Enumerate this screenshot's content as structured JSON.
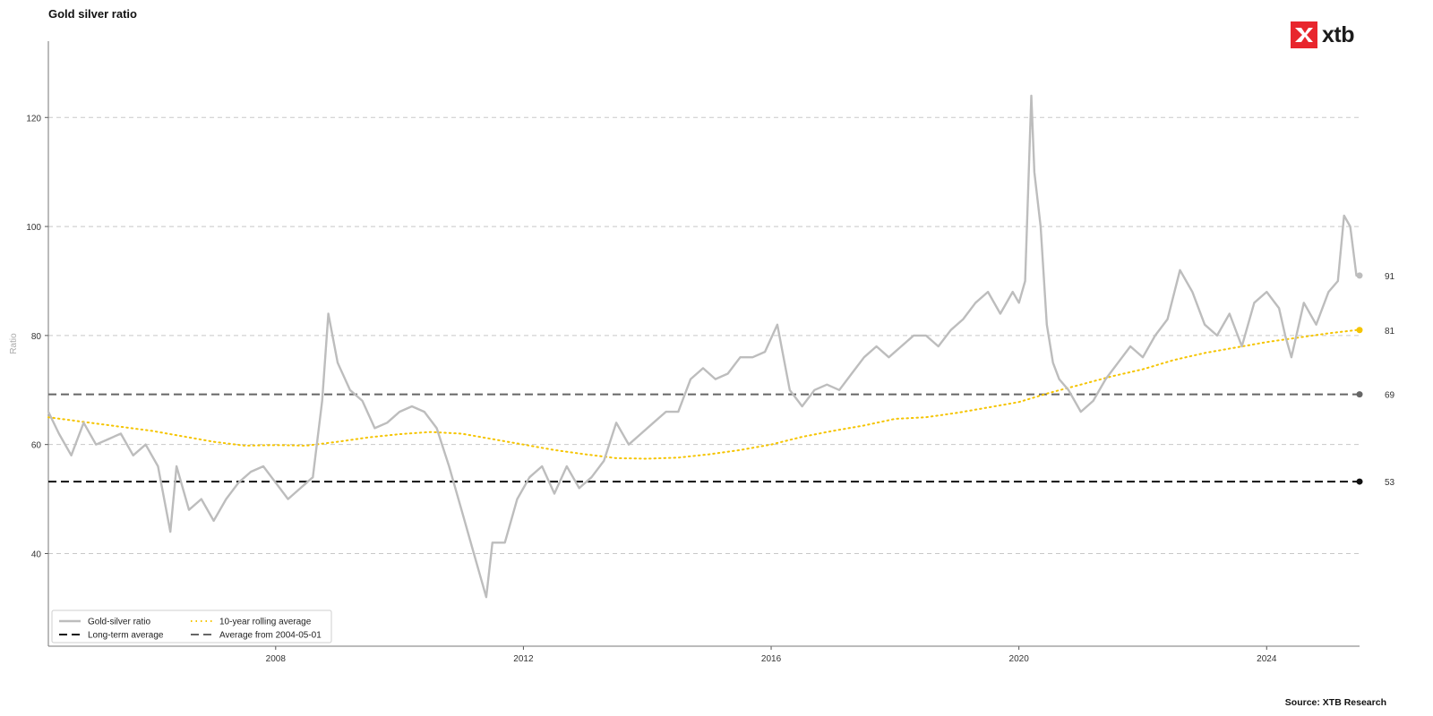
{
  "title": "Gold silver ratio",
  "source": "Source: XTB Research",
  "logo": {
    "text": "xtb",
    "color": "#e8262d"
  },
  "chart_data": {
    "type": "line",
    "title": "Gold silver ratio",
    "xlabel": "",
    "ylabel": "Ratio",
    "xlim": [
      2004.33,
      2025.5
    ],
    "ylim": [
      23,
      134
    ],
    "x_ticks": [
      2008,
      2012,
      2016,
      2020,
      2024
    ],
    "x_tick_labels": [
      "2008",
      "2012",
      "2016",
      "2020",
      "2024"
    ],
    "y_ticks": [
      40,
      60,
      80,
      100,
      120
    ],
    "y_tick_labels": [
      "40",
      "60",
      "80",
      "100",
      "120"
    ],
    "grid": "horizontal dashed",
    "legend_position": "bottom-left",
    "series": [
      {
        "name": "Gold-silver ratio",
        "style": "solid",
        "color": "#bdbdbd",
        "end_label": "91",
        "x": [
          2004.33,
          2004.5,
          2004.7,
          2004.9,
          2005.1,
          2005.3,
          2005.5,
          2005.7,
          2005.9,
          2006.1,
          2006.3,
          2006.4,
          2006.6,
          2006.8,
          2007.0,
          2007.2,
          2007.4,
          2007.6,
          2007.8,
          2008.0,
          2008.2,
          2008.4,
          2008.6,
          2008.75,
          2008.85,
          2009.0,
          2009.2,
          2009.4,
          2009.6,
          2009.8,
          2010.0,
          2010.2,
          2010.4,
          2010.6,
          2010.8,
          2011.0,
          2011.2,
          2011.3,
          2011.4,
          2011.5,
          2011.7,
          2011.9,
          2012.1,
          2012.3,
          2012.5,
          2012.7,
          2012.9,
          2013.1,
          2013.3,
          2013.5,
          2013.7,
          2013.9,
          2014.1,
          2014.3,
          2014.5,
          2014.7,
          2014.9,
          2015.1,
          2015.3,
          2015.5,
          2015.7,
          2015.9,
          2016.1,
          2016.3,
          2016.5,
          2016.7,
          2016.9,
          2017.1,
          2017.3,
          2017.5,
          2017.7,
          2017.9,
          2018.1,
          2018.3,
          2018.5,
          2018.7,
          2018.9,
          2019.1,
          2019.3,
          2019.5,
          2019.7,
          2019.9,
          2020.0,
          2020.1,
          2020.2,
          2020.25,
          2020.35,
          2020.45,
          2020.55,
          2020.65,
          2020.8,
          2021.0,
          2021.2,
          2021.4,
          2021.6,
          2021.8,
          2022.0,
          2022.2,
          2022.4,
          2022.6,
          2022.8,
          2023.0,
          2023.2,
          2023.4,
          2023.6,
          2023.8,
          2024.0,
          2024.2,
          2024.3,
          2024.4,
          2024.6,
          2024.8,
          2025.0,
          2025.15,
          2025.25,
          2025.35,
          2025.45
        ],
        "y": [
          66,
          62,
          58,
          64,
          60,
          61,
          62,
          58,
          60,
          56,
          44,
          56,
          48,
          50,
          46,
          50,
          53,
          55,
          56,
          53,
          50,
          52,
          54,
          68,
          84,
          75,
          70,
          68,
          63,
          64,
          66,
          67,
          66,
          63,
          56,
          48,
          40,
          36,
          32,
          42,
          42,
          50,
          54,
          56,
          51,
          56,
          52,
          54,
          57,
          64,
          60,
          62,
          64,
          66,
          66,
          72,
          74,
          72,
          73,
          76,
          76,
          77,
          82,
          70,
          67,
          70,
          71,
          70,
          73,
          76,
          78,
          76,
          78,
          80,
          80,
          78,
          81,
          83,
          86,
          88,
          84,
          88,
          86,
          90,
          124,
          110,
          100,
          82,
          75,
          72,
          70,
          66,
          68,
          72,
          75,
          78,
          76,
          80,
          83,
          92,
          88,
          82,
          80,
          84,
          78,
          86,
          88,
          85,
          80,
          76,
          86,
          82,
          88,
          90,
          102,
          100,
          91
        ]
      },
      {
        "name": "10-year rolling average",
        "style": "dotted",
        "color": "#f5c400",
        "end_label": "81",
        "x": [
          2004.33,
          2005.0,
          2006.0,
          2007.0,
          2007.5,
          2008.0,
          2008.5,
          2009.0,
          2009.5,
          2010.0,
          2010.5,
          2011.0,
          2011.5,
          2012.0,
          2012.5,
          2013.0,
          2013.5,
          2014.0,
          2014.5,
          2015.0,
          2015.5,
          2016.0,
          2016.5,
          2017.0,
          2017.5,
          2018.0,
          2018.5,
          2019.0,
          2019.5,
          2020.0,
          2020.5,
          2021.0,
          2021.5,
          2022.0,
          2022.5,
          2023.0,
          2023.5,
          2024.0,
          2024.5,
          2025.0,
          2025.45
        ],
        "y": [
          65,
          64,
          62.5,
          60.5,
          59.8,
          59.9,
          59.8,
          60.5,
          61.3,
          61.9,
          62.3,
          62.0,
          61.0,
          60.0,
          59.0,
          58.2,
          57.5,
          57.4,
          57.6,
          58.2,
          59.0,
          60.0,
          61.4,
          62.5,
          63.5,
          64.7,
          65.0,
          65.8,
          66.8,
          67.8,
          69.5,
          71.0,
          72.5,
          73.8,
          75.5,
          76.8,
          77.8,
          78.8,
          79.6,
          80.4,
          81
        ]
      },
      {
        "name": "Long-term average",
        "style": "dashed",
        "color": "#111111",
        "end_label": "53",
        "y_value": 53.2
      },
      {
        "name": "Average from 2004-05-01",
        "style": "dashed",
        "color": "#666666",
        "end_label": "69",
        "y_value": 69.2
      }
    ]
  }
}
